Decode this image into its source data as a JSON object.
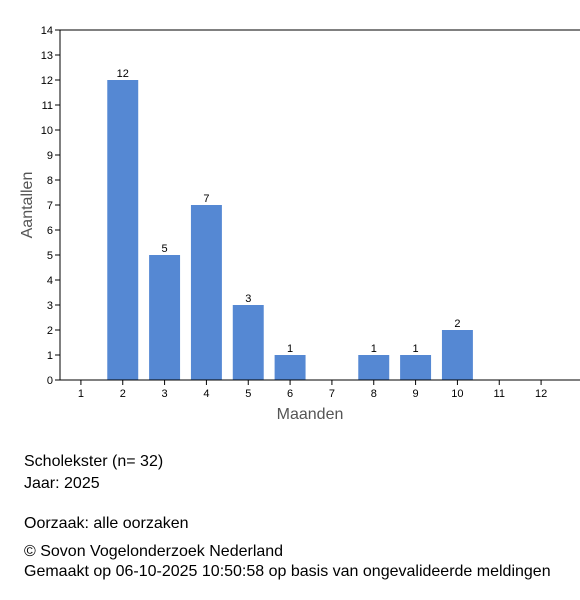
{
  "chart_data": {
    "type": "bar",
    "categories": [
      "1",
      "2",
      "3",
      "4",
      "5",
      "6",
      "7",
      "8",
      "9",
      "10",
      "11",
      "12"
    ],
    "values": [
      0,
      12,
      5,
      7,
      3,
      1,
      0,
      1,
      1,
      2,
      0,
      0
    ],
    "data_labels": [
      "",
      "12",
      "5",
      "7",
      "3",
      "1",
      "",
      "1",
      "1",
      "2",
      "",
      ""
    ],
    "xlabel": "Maanden",
    "ylabel": "Aantallen",
    "ylim": [
      0,
      14
    ],
    "yticks": [
      "0",
      "1",
      "2",
      "3",
      "4",
      "5",
      "6",
      "7",
      "8",
      "9",
      "10",
      "11",
      "12",
      "13",
      "14"
    ],
    "grid": false,
    "bar_color": "#5588d3",
    "axis_color": "#000000",
    "label_color": "#555555"
  },
  "info": {
    "species": "Scholekster  (n= 32)",
    "year": "Jaar: 2025",
    "cause": "Oorzaak: alle oorzaken",
    "copyright": "© Sovon Vogelonderzoek Nederland",
    "generated": "Gemaakt op 06-10-2025 10:50:58 op basis van ongevalideerde meldingen"
  }
}
